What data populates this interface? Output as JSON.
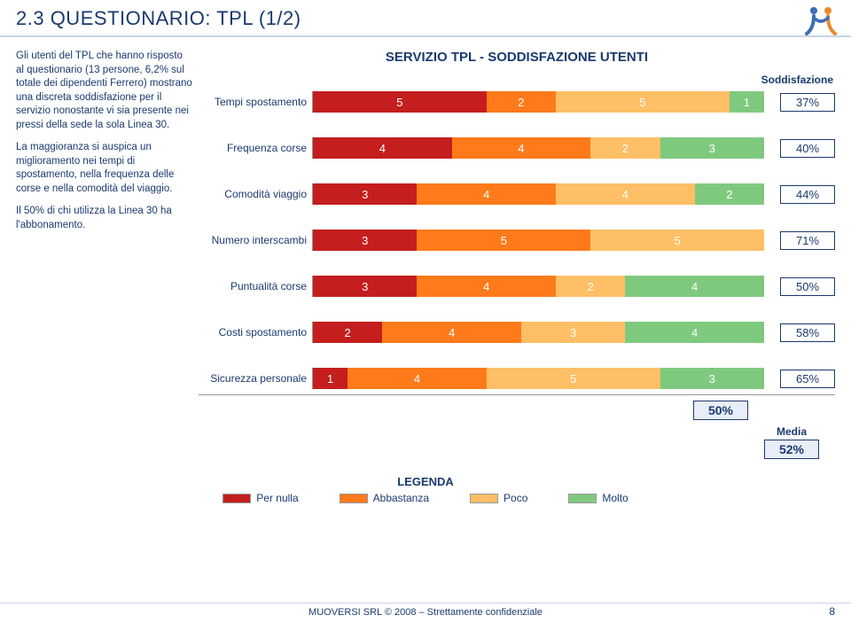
{
  "title": "2.3 QUESTIONARIO: TPL (1/2)",
  "sidebar": {
    "para1": "Gli utenti del TPL che hanno risposto al questionario (13 persone, 6,2% sul totale dei dipendenti Ferrero) mostrano una discreta soddisfazione per il servizio nonostante vi sia presente nei pressi della sede la sola Linea 30.",
    "para2": "La maggioranza si auspica un miglioramento nei tempi di spostamento, nella frequenza delle corse e nella comodità del viaggio.",
    "para3": "Il 50% di chi utilizza la Linea 30 ha l'abbonamento."
  },
  "chart": {
    "title": "SERVIZIO TPL - SODDISFAZIONE UTENTI",
    "satisfaction_header": "Soddisfazione",
    "colors": {
      "c1": "#c41e1e",
      "c2": "#ff7a1a",
      "c3": "#ffbf66",
      "c4": "#7fc97f"
    },
    "rows": [
      {
        "label": "Tempi spostamento",
        "v": [
          5,
          2,
          5,
          1
        ],
        "pct": "37%"
      },
      {
        "label": "Frequenza corse",
        "v": [
          4,
          4,
          2,
          3
        ],
        "pct": "40%"
      },
      {
        "label": "Comodità viaggio",
        "v": [
          3,
          4,
          4,
          2
        ],
        "pct": "44%"
      },
      {
        "label": "Numero interscambi",
        "v": [
          3,
          5,
          5,
          0
        ],
        "pct": "71%"
      },
      {
        "label": "Puntualità corse",
        "v": [
          3,
          4,
          2,
          4
        ],
        "pct": "50%"
      },
      {
        "label": "Costi spostamento",
        "v": [
          2,
          4,
          3,
          4
        ],
        "pct": "58%"
      },
      {
        "label": "Sicurezza personale",
        "v": [
          1,
          4,
          5,
          3
        ],
        "pct": "65%"
      }
    ],
    "summary_value": "50%",
    "media_label": "Media",
    "media_value": "52%"
  },
  "legend": {
    "title": "LEGENDA",
    "items": [
      {
        "label": "Per nulla",
        "colorKey": "c1"
      },
      {
        "label": "Abbastanza",
        "colorKey": "c2"
      },
      {
        "label": "Poco",
        "colorKey": "c3"
      },
      {
        "label": "Molto",
        "colorKey": "c4"
      }
    ]
  },
  "footer": "MUOVERSI SRL © 2008 – Strettamente confidenziale",
  "page_number": "8"
}
